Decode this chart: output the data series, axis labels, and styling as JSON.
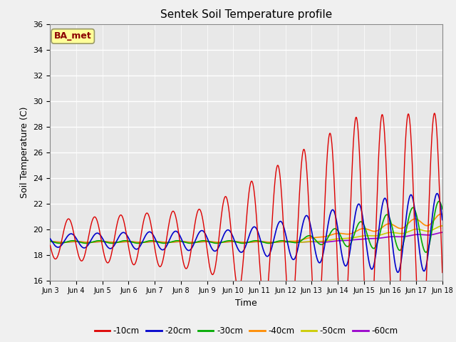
{
  "title": "Sentek Soil Temperature profile",
  "xlabel": "Time",
  "ylabel": "Soil Temperature (C)",
  "ylim": [
    16,
    36
  ],
  "annotation": "BA_met",
  "annotation_color": "#8B0000",
  "annotation_bg": "#FFFF99",
  "fig_bg": "#F0F0F0",
  "plot_bg": "#E8E8E8",
  "colors": {
    "-10cm": "#DD0000",
    "-20cm": "#0000CC",
    "-30cm": "#00AA00",
    "-40cm": "#FF8C00",
    "-50cm": "#CCCC00",
    "-60cm": "#9900CC"
  },
  "legend_labels": [
    "-10cm",
    "-20cm",
    "-30cm",
    "-40cm",
    "-50cm",
    "-60cm"
  ],
  "x_tick_labels": [
    "Jun 3",
    "Jun 4",
    "Jun 5",
    "Jun 6",
    "Jun 7",
    "Jun 8",
    "Jun 9",
    "Jun 10",
    "Jun 11",
    "Jun 12",
    "Jun 13",
    "Jun 14",
    "Jun 15",
    "Jun 16",
    "Jun 17",
    "Jun 18"
  ],
  "yticks": [
    16,
    18,
    20,
    22,
    24,
    26,
    28,
    30,
    32,
    34,
    36
  ],
  "title_fontsize": 11
}
